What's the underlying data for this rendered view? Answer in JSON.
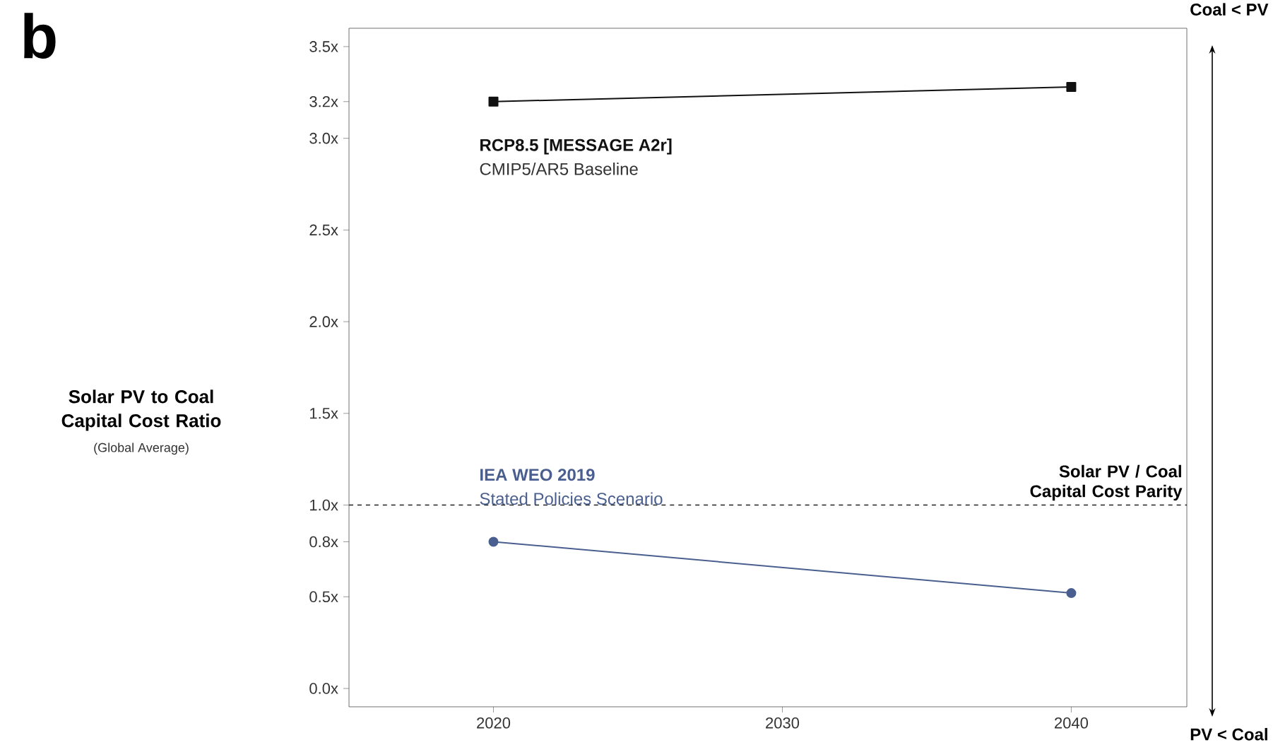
{
  "chart_data": {
    "type": "line",
    "title": "b",
    "ylabel": "Solar PV to Coal Capital Cost Ratio",
    "annotations": [
      "(Global Average)",
      "CMIP5/AR5 Baseline",
      "Stated Policies Scenario",
      "Coal < PV",
      "PV < Coal"
    ],
    "x": [
      2020,
      2040
    ],
    "series": [
      {
        "name": "RCP8.5 [MESSAGE A2r]",
        "color": "#111111",
        "values": [
          3.2,
          3.28
        ],
        "marker": "square"
      },
      {
        "name": "IEA WEO 2019",
        "color": "#4a5f8f",
        "values": [
          0.8,
          0.52
        ],
        "marker": "circle"
      }
    ],
    "xlim": [
      2015,
      2044
    ],
    "xticks": [
      2020,
      2030,
      2040
    ],
    "ylim": [
      -0.1,
      3.6
    ],
    "yticks": [
      {
        "value": 0,
        "label": "0.0x"
      },
      {
        "value": 0.5,
        "label": "0.5x"
      },
      {
        "value": 0.8,
        "label": "0.8x"
      },
      {
        "value": 1.0,
        "label": "1.0x"
      },
      {
        "value": 1.5,
        "label": "1.5x"
      },
      {
        "value": 2.0,
        "label": "2.0x"
      },
      {
        "value": 2.5,
        "label": "2.5x"
      },
      {
        "value": 3.0,
        "label": "3.0x"
      },
      {
        "value": 3.2,
        "label": "3.2x"
      },
      {
        "value": 3.5,
        "label": "3.5x"
      }
    ],
    "ref_lines": [
      {
        "axis": "y",
        "value": 1.0,
        "label": "Solar PV / Coal Capital Cost Parity",
        "line_style": "dashed",
        "color": "#222222"
      }
    ],
    "grid": false,
    "legend": false,
    "line_style": "solid"
  }
}
